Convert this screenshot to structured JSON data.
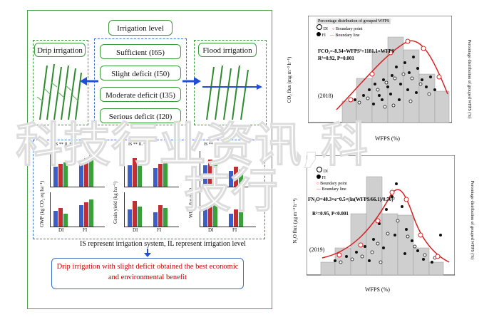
{
  "left_diagram": {
    "top_title": "Irrigation level",
    "left_box": "Drip irrigation",
    "right_box": "Flood irrigation",
    "levels": [
      "Sufficient (I65)",
      "Slight deficit (I50)",
      "Moderate deficit (I35)",
      "Serious deficit (I20)"
    ],
    "legend_line": "IS represent irrigation system, IL represent irrigation level",
    "conclusion_line1": "Drip irrigation with slight deficit obtained the best economic",
    "conclusion_line2": "and environmental benefit",
    "mini_charts": {
      "ylabels": [
        "GWP (kg CO₂ eq ha⁻¹)",
        "Grain yield (kg ha⁻¹)",
        "WUE (kg m⁻³)"
      ],
      "xcats": [
        "DI",
        "FI"
      ],
      "ann_top": [
        "IS ** IL **",
        "IS ** IL **",
        "IS ** IL **"
      ]
    }
  },
  "chart_top": {
    "legend_title": "Percentage distribution of grouped WFPS",
    "legend": [
      "DI",
      "FI",
      "Boundary point",
      "Boundary line"
    ],
    "equation": "FCO₂=-8.34×WFPS²+1181.1×WFPS",
    "stats": "R²=0.92, P=0.001",
    "year": "(2018)",
    "ylabel": "CO₂ flux (mg m⁻² h⁻¹)",
    "ylabel_right": "Percentage distribution of grouped WFPS (%)",
    "xlabel": "WFPS (%)",
    "yticks": [
      "0",
      "200",
      "400",
      "600",
      "800",
      "1000",
      "1200",
      "1400"
    ],
    "yticks_right": [
      "0",
      "10",
      "20",
      "30",
      "40",
      "50",
      "60"
    ],
    "xticks": [
      "10",
      "20",
      "30",
      "40",
      "50",
      "60",
      "70",
      "80",
      "90"
    ]
  },
  "chart_bottom": {
    "legend": [
      "DI",
      "FI",
      "Boundary point",
      "Boundary line"
    ],
    "equation": "FN₂O=48.3×e⁻0.5×(ln(WFPS/66.1)/0.50)²",
    "stats": "R²=0.95, P<0.001",
    "year": "(2019)",
    "ylabel": "N₂O flux (μg m⁻² h⁻¹)",
    "ylabel_right": "Percentage distribution of grouped WFPS (%)",
    "xlabel": "WFPS (%)",
    "yticks": [
      "0",
      "10",
      "20",
      "30",
      "40",
      "50"
    ],
    "yticks_right": [
      "0",
      "10",
      "20",
      "30",
      "40",
      "50",
      "60"
    ],
    "xticks": [
      "0",
      "10",
      "20",
      "30",
      "40",
      "50",
      "60",
      "70",
      "80",
      "90"
    ]
  },
  "overlay_text": {
    "line1": "科技行业资讯,科",
    "line2": "技行"
  },
  "colors": {
    "green": "#3a9a3a",
    "blue_dashed": "#3a70c8",
    "red": "#cc0000",
    "hist": "#c8c8c8",
    "overlay": "#ffffff"
  }
}
